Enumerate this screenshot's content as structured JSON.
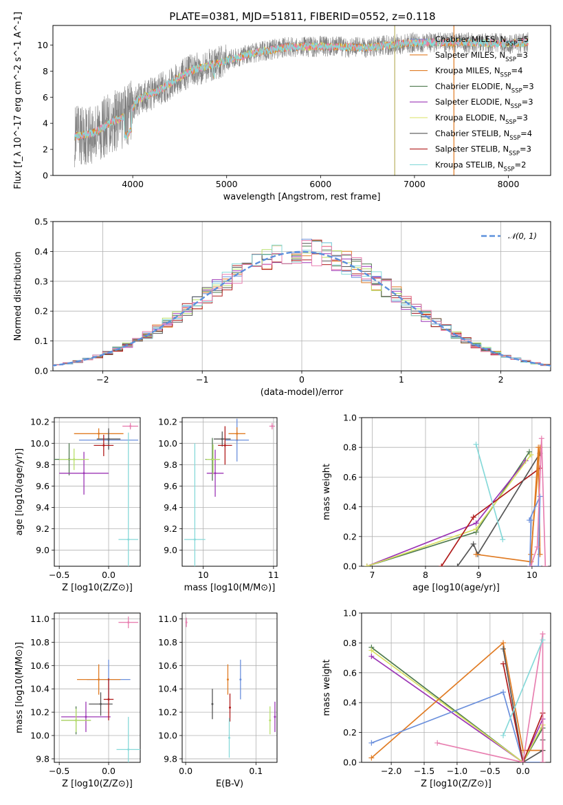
{
  "title": "PLATE=0381, MJD=51811, FIBERID=0552, z=0.118",
  "colors": {
    "Chabrier MILES": "#6a8fdc",
    "Salpeter MILES": "#e07b23",
    "Kroupa MILES": "#e07b23",
    "Chabrier ELODIE": "#4e7a4e",
    "Salpeter ELODIE": "#9b35b5",
    "Kroupa ELODIE": "#d8e060",
    "Chabrier STELIB": "#555555",
    "Salpeter STELIB": "#b01b1b",
    "Kroupa STELIB": "#86d9d9",
    "data": "#808080",
    "pink": "#e87fb0",
    "lime": "#b8e06a",
    "gauss": "#5b8fdc"
  },
  "chart_data": [
    {
      "id": "spectrum",
      "type": "line",
      "title": "PLATE=0381, MJD=51811, FIBERID=0552, z=0.118",
      "xlabel": "wavelength [Angstrom, rest frame]",
      "ylabel": "Flux [f_λ 10^-17 erg cm^-2 s^-1 A^-1]",
      "xlim": [
        3150,
        8450
      ],
      "ylim": [
        0,
        11.5
      ],
      "xticks": [
        "4000",
        "5000",
        "6000",
        "7000",
        "8000"
      ],
      "yticks": [
        "0",
        "2",
        "4",
        "6",
        "8",
        "10"
      ],
      "legend_position": "upper-right",
      "series": [
        {
          "name": "Chabrier MILES",
          "ssp": "5"
        },
        {
          "name": "Salpeter MILES",
          "ssp": "3"
        },
        {
          "name": "Kroupa MILES",
          "ssp": "4"
        },
        {
          "name": "Chabrier ELODIE",
          "ssp": "3"
        },
        {
          "name": "Salpeter ELODIE",
          "ssp": "3"
        },
        {
          "name": "Kroupa ELODIE",
          "ssp": "3"
        },
        {
          "name": "Chabrier STELIB",
          "ssp": "4"
        },
        {
          "name": "Salpeter STELIB",
          "ssp": "3"
        },
        {
          "name": "Kroupa STELIB",
          "ssp": "2"
        }
      ],
      "continuum": {
        "x": [
          3400,
          3600,
          3800,
          3950,
          4050,
          4300,
          4600,
          5000,
          5300,
          5600,
          6000,
          6500,
          7000,
          7500,
          8000,
          8200
        ],
        "y": [
          3.0,
          3.3,
          4.2,
          4.6,
          5.8,
          6.6,
          8.0,
          8.8,
          9.4,
          9.8,
          9.9,
          9.8,
          10.2,
          10.2,
          10.1,
          10.2
        ]
      }
    },
    {
      "id": "residuals",
      "type": "line",
      "xlabel": "(data-model)/error",
      "ylabel": "Normed distribution",
      "xlim": [
        -2.5,
        2.5
      ],
      "ylim": [
        0,
        0.5
      ],
      "xticks": [
        "−2",
        "−1",
        "0",
        "1",
        "2"
      ],
      "yticks": [
        "0.0",
        "0.1",
        "0.2",
        "0.3",
        "0.4",
        "0.5"
      ],
      "legend": "𝒩(0, 1)",
      "legend_position": "upper-right",
      "grid": true
    },
    {
      "id": "age_vs_Z",
      "type": "scatter",
      "xlabel": "Z [log10(Z/Z⊙)]",
      "ylabel": "age [log10(age/yr)]",
      "xlim": [
        -0.55,
        0.32
      ],
      "ylim": [
        8.85,
        10.24
      ],
      "xticks": [
        "−0.5",
        "0.0"
      ],
      "yticks": [
        "9.0",
        "9.2",
        "9.4",
        "9.6",
        "9.8",
        "10.0",
        "10.2"
      ],
      "grid": true,
      "points": [
        {
          "x": 0.0,
          "y": 10.03,
          "xerr": 0.3,
          "yerr": 0.08,
          "c": "Chabrier MILES"
        },
        {
          "x": -0.1,
          "y": 10.09,
          "xerr": 0.25,
          "yerr": 0.05,
          "c": "Salpeter MILES"
        },
        {
          "x": -0.4,
          "y": 9.85,
          "xerr": 0.15,
          "yerr": 0.15,
          "c": "Chabrier ELODIE"
        },
        {
          "x": -0.25,
          "y": 9.72,
          "xerr": 0.25,
          "yerr": 0.2,
          "c": "Salpeter ELODIE"
        },
        {
          "x": -0.35,
          "y": 9.85,
          "xerr": 0.15,
          "yerr": 0.1,
          "c": "lime"
        },
        {
          "x": 0.0,
          "y": 10.04,
          "xerr": 0.12,
          "yerr": 0.1,
          "c": "Chabrier STELIB"
        },
        {
          "x": -0.05,
          "y": 9.98,
          "xerr": 0.1,
          "yerr": 0.1,
          "c": "Salpeter STELIB"
        },
        {
          "x": 0.2,
          "y": 9.1,
          "xerr": 0.1,
          "yerr": 1.0,
          "c": "Kroupa STELIB"
        },
        {
          "x": 0.22,
          "y": 10.16,
          "xerr": 0.08,
          "yerr": 0.03,
          "c": "pink"
        }
      ]
    },
    {
      "id": "age_vs_mass",
      "type": "scatter",
      "xlabel": "mass [log10(M/M⊙)]",
      "xlim": [
        9.7,
        11.05
      ],
      "ylim": [
        8.85,
        10.24
      ],
      "xticks": [
        "10",
        "11"
      ],
      "yticks": [
        "9.0",
        "9.2",
        "9.4",
        "9.6",
        "9.8",
        "10.0",
        "10.2"
      ],
      "grid": true,
      "points": [
        {
          "x": 10.48,
          "y": 10.03,
          "xerr": 0.17,
          "yerr": 0.2,
          "c": "Chabrier MILES"
        },
        {
          "x": 10.48,
          "y": 10.09,
          "xerr": 0.12,
          "yerr": 0.06,
          "c": "Salpeter MILES"
        },
        {
          "x": 10.13,
          "y": 9.85,
          "xerr": 0.1,
          "yerr": 0.2,
          "c": "Chabrier ELODIE"
        },
        {
          "x": 10.17,
          "y": 9.72,
          "xerr": 0.12,
          "yerr": 0.22,
          "c": "Salpeter ELODIE"
        },
        {
          "x": 10.14,
          "y": 9.85,
          "xerr": 0.1,
          "yerr": 0.14,
          "c": "lime"
        },
        {
          "x": 10.27,
          "y": 10.04,
          "xerr": 0.12,
          "yerr": 0.07,
          "c": "Chabrier STELIB"
        },
        {
          "x": 10.31,
          "y": 9.98,
          "xerr": 0.1,
          "yerr": 0.18,
          "c": "Salpeter STELIB"
        },
        {
          "x": 9.88,
          "y": 9.1,
          "xerr": 0.15,
          "yerr": 0.9,
          "c": "Kroupa STELIB"
        },
        {
          "x": 10.98,
          "y": 10.16,
          "xerr": 0.04,
          "yerr": 0.03,
          "c": "pink"
        }
      ]
    },
    {
      "id": "weight_vs_age",
      "type": "line",
      "xlabel": "age [log10(age/yr)]",
      "ylabel": "mass weight",
      "xlim": [
        6.8,
        10.35
      ],
      "ylim": [
        0,
        1
      ],
      "xticks": [
        "7",
        "8",
        "9",
        "10"
      ],
      "yticks": [
        "0.0",
        "0.2",
        "0.4",
        "0.6",
        "0.8",
        "1.0"
      ],
      "grid": true,
      "series": [
        {
          "c": "Chabrier ELODIE",
          "x": [
            6.9,
            8.95,
            9.95
          ],
          "y": [
            0.0,
            0.23,
            0.77
          ]
        },
        {
          "c": "Salpeter ELODIE",
          "x": [
            6.9,
            8.95,
            9.88
          ],
          "y": [
            0.0,
            0.29,
            0.71
          ]
        },
        {
          "c": "Kroupa ELODIE",
          "x": [
            6.9,
            8.95,
            9.98
          ],
          "y": [
            0.0,
            0.25,
            0.75
          ]
        },
        {
          "c": "Salpeter STELIB",
          "x": [
            8.3,
            8.9,
            10.15
          ],
          "y": [
            0.0,
            0.33,
            0.66
          ]
        },
        {
          "c": "Chabrier STELIB",
          "x": [
            8.6,
            8.9,
            8.98,
            10.15
          ],
          "y": [
            0.0,
            0.15,
            0.08,
            0.76
          ]
        },
        {
          "c": "Salpeter MILES",
          "x": [
            8.95,
            9.98,
            10.12,
            10.15
          ],
          "y": [
            0.08,
            0.03,
            0.8,
            0.08
          ]
        },
        {
          "c": "Kroupa MILES",
          "x": [
            9.98,
            10.15
          ],
          "y": [
            0.08,
            0.8
          ]
        },
        {
          "c": "Chabrier MILES",
          "x": [
            9.95,
            10.15,
            10.12,
            9.96,
            9.98
          ],
          "y": [
            0.31,
            0.47,
            0.0,
            0.0,
            0.31
          ]
        },
        {
          "c": "pink",
          "x": [
            9.98,
            10.1,
            10.18,
            10.25
          ],
          "y": [
            0.0,
            0.13,
            0.86,
            0.0
          ]
        },
        {
          "c": "Kroupa STELIB",
          "x": [
            8.95,
            9.45
          ],
          "y": [
            0.82,
            0.18
          ]
        }
      ]
    },
    {
      "id": "mass_vs_Z",
      "type": "scatter",
      "xlabel": "Z [log10(Z/Z⊙)]",
      "ylabel": "mass [log10(M/M⊙)]",
      "xlim": [
        -0.55,
        0.32
      ],
      "ylim": [
        9.77,
        11.05
      ],
      "xticks": [
        "−0.5",
        "0.0"
      ],
      "yticks": [
        "9.8",
        "10.0",
        "10.2",
        "10.4",
        "10.6",
        "10.8",
        "11.0"
      ],
      "grid": true,
      "points": [
        {
          "x": 0.0,
          "y": 10.48,
          "xerr": 0.22,
          "yerr": 0.17,
          "c": "Chabrier MILES"
        },
        {
          "x": -0.1,
          "y": 10.48,
          "xerr": 0.22,
          "yerr": 0.13,
          "c": "Salpeter MILES"
        },
        {
          "x": -0.33,
          "y": 10.13,
          "xerr": 0.15,
          "yerr": 0.12,
          "c": "Chabrier ELODIE"
        },
        {
          "x": -0.23,
          "y": 10.16,
          "xerr": 0.25,
          "yerr": 0.13,
          "c": "Salpeter ELODIE"
        },
        {
          "x": -0.33,
          "y": 10.13,
          "xerr": 0.15,
          "yerr": 0.1,
          "c": "lime"
        },
        {
          "x": -0.08,
          "y": 10.27,
          "xerr": 0.12,
          "yerr": 0.1,
          "c": "Chabrier STELIB"
        },
        {
          "x": 0.0,
          "y": 10.31,
          "xerr": 0.05,
          "yerr": 0.18,
          "c": "Salpeter STELIB"
        },
        {
          "x": 0.2,
          "y": 9.88,
          "xerr": 0.12,
          "yerr": 0.28,
          "c": "Kroupa STELIB"
        },
        {
          "x": 0.2,
          "y": 10.97,
          "xerr": 0.1,
          "yerr": 0.05,
          "c": "pink"
        }
      ]
    },
    {
      "id": "mass_vs_ebv",
      "type": "scatter",
      "xlabel": "E(B-V)",
      "xlim": [
        -0.005,
        0.13
      ],
      "ylim": [
        9.77,
        11.05
      ],
      "xticks": [
        "0.0",
        "0.1"
      ],
      "yticks": [
        "9.8",
        "10.0",
        "10.2",
        "10.4",
        "10.6",
        "10.8",
        "11.0"
      ],
      "grid": true,
      "points": [
        {
          "x": 0.078,
          "y": 10.48,
          "yerr": 0.17,
          "c": "Chabrier MILES"
        },
        {
          "x": 0.06,
          "y": 10.48,
          "yerr": 0.13,
          "c": "Salpeter MILES"
        },
        {
          "x": 0.12,
          "y": 10.13,
          "yerr": 0.12,
          "c": "lime"
        },
        {
          "x": 0.127,
          "y": 10.16,
          "yerr": 0.13,
          "c": "Salpeter ELODIE"
        },
        {
          "x": 0.038,
          "y": 10.27,
          "yerr": 0.13,
          "c": "Chabrier STELIB"
        },
        {
          "x": 0.063,
          "y": 10.24,
          "yerr": 0.12,
          "c": "Salpeter STELIB"
        },
        {
          "x": 0.062,
          "y": 9.98,
          "yerr": 0.17,
          "c": "Kroupa STELIB"
        },
        {
          "x": 0.001,
          "y": 10.97,
          "yerr": 0.04,
          "c": "pink"
        }
      ]
    },
    {
      "id": "weight_vs_Z",
      "type": "line",
      "xlabel": "Z [log10(Z/Z⊙)]",
      "ylabel": "mass weight",
      "xlim": [
        -2.45,
        0.42
      ],
      "ylim": [
        0,
        1
      ],
      "xticks": [
        "−2.0",
        "−1.5",
        "−1.0",
        "−0.5",
        "0.0"
      ],
      "yticks": [
        "0.0",
        "0.2",
        "0.4",
        "0.6",
        "0.8",
        "1.0"
      ],
      "grid": true,
      "series": [
        {
          "c": "Chabrier ELODIE",
          "x": [
            -2.3,
            0.0,
            0.3
          ],
          "y": [
            0.77,
            0.0,
            0.23
          ]
        },
        {
          "c": "Salpeter ELODIE",
          "x": [
            -2.3,
            0.0,
            0.3
          ],
          "y": [
            0.71,
            0.0,
            0.29
          ]
        },
        {
          "c": "Kroupa ELODIE",
          "x": [
            -2.3,
            0.0,
            0.3
          ],
          "y": [
            0.75,
            0.0,
            0.25
          ]
        },
        {
          "c": "Salpeter MILES",
          "x": [
            -2.3,
            -0.3,
            0.0,
            0.3
          ],
          "y": [
            0.03,
            0.8,
            0.08,
            0.08
          ]
        },
        {
          "c": "Chabrier MILES",
          "x": [
            -2.3,
            -0.3,
            0.0,
            0.3
          ],
          "y": [
            0.13,
            0.47,
            0.0,
            0.0
          ]
        },
        {
          "c": "Chabrier STELIB",
          "x": [
            -0.3,
            0.0,
            0.3,
            0.3
          ],
          "y": [
            0.76,
            0.0,
            0.08,
            0.15
          ]
        },
        {
          "c": "Salpeter STELIB",
          "x": [
            -0.3,
            0.0,
            0.3,
            0.3
          ],
          "y": [
            0.66,
            0.0,
            0.33,
            0.0
          ]
        },
        {
          "c": "pink",
          "x": [
            -1.3,
            0.0,
            0.3,
            0.3
          ],
          "y": [
            0.13,
            0.0,
            0.86,
            0.0
          ]
        },
        {
          "c": "Kroupa STELIB",
          "x": [
            -0.3,
            0.3
          ],
          "y": [
            0.18,
            0.82
          ]
        }
      ]
    }
  ],
  "residual_series_colors": [
    "#6a8fdc",
    "#e07b23",
    "#4e7a4e",
    "#9b35b5",
    "#b8e06a",
    "#555555",
    "#b01b1b",
    "#86d9d9",
    "#e87fb0"
  ]
}
